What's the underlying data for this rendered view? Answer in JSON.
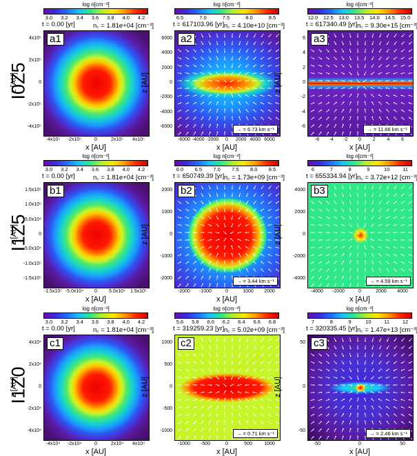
{
  "rows": [
    {
      "label": "I0Z5",
      "panels": [
        {
          "id": "a1",
          "colorbar": {
            "title": "log n[cm⁻³]",
            "ticks": [
              "3.0",
              "3.2",
              "3.4",
              "3.6",
              "3.8",
              "4.0",
              "4.2"
            ]
          },
          "time": "t = 0.00 [yr]",
          "nc": "n꜀ = 1.81e+04 [cm⁻³]",
          "xticks": [
            "-4x10⁵",
            "-2x10⁵",
            "0",
            "2x10⁵",
            "4x10⁵"
          ],
          "yticks": [
            "4x10⁵",
            "2x10⁵",
            "0",
            "-2x10⁵",
            "-4x10⁵"
          ],
          "xlabel": "x [AU]",
          "ylabel": "z [AU]",
          "velocity": ""
        },
        {
          "id": "a2",
          "colorbar": {
            "title": "log n[cm⁻³]",
            "ticks": [
              "6.5",
              "7.0",
              "7.5",
              "8.0",
              "8.5"
            ]
          },
          "time": "t = 617103.96 [yr]",
          "nc": "n꜀ = 4.10e+10 [cm⁻³]",
          "xticks": [
            "-6000",
            "-4000",
            "-2000",
            "0",
            "2000",
            "4000",
            "6000"
          ],
          "yticks": [
            "6000",
            "4000",
            "2000",
            "0",
            "-2000",
            "-4000",
            "-6000"
          ],
          "xlabel": "x [AU]",
          "ylabel": "z [AU]",
          "velocity": "→ = 6.73 km s⁻¹"
        },
        {
          "id": "a3",
          "colorbar": {
            "title": "log n[cm⁻³]",
            "ticks": [
              "12.0",
              "12.5",
              "13.0",
              "13.5",
              "14.0",
              "14.5",
              "15.0"
            ]
          },
          "time": "t = 617340.49 [yr]",
          "nc": "n꜀ = 9.30e+15 [cm⁻³]",
          "xticks": [
            "-6",
            "-4",
            "-2",
            "0",
            "2",
            "4",
            "6"
          ],
          "yticks": [
            "6",
            "4",
            "2",
            "0",
            "-2",
            "-4",
            "-6"
          ],
          "xlabel": "x [AU]",
          "ylabel": "z [AU]",
          "velocity": "→ = 11.66 km s⁻¹"
        }
      ]
    },
    {
      "label": "I1Z5",
      "panels": [
        {
          "id": "b1",
          "colorbar": {
            "title": "log n[cm⁻³]",
            "ticks": [
              "3.0",
              "3.2",
              "3.4",
              "3.6",
              "3.8",
              "4.0",
              "4.2"
            ]
          },
          "time": "t = 0.00 [yr]",
          "nc": "n꜀ = 1.81e+04 [cm⁻³]",
          "xticks": [
            "-1.5x10⁵",
            "-5.0x10⁴",
            "0",
            "5.0x10⁴",
            "1.5x10⁵"
          ],
          "yticks": [
            "1.5x10⁵",
            "1.0x10⁵",
            "5.0x10⁴",
            "0",
            "-5.0x10⁴",
            "-1.0x10⁵",
            "-1.5x10⁵"
          ],
          "xlabel": "x [AU]",
          "ylabel": "z [AU]",
          "velocity": ""
        },
        {
          "id": "b2",
          "colorbar": {
            "title": "log n[cm⁻³]",
            "ticks": [
              "6.0",
              "6.5",
              "7.0",
              "7.5",
              "8.0",
              "8.5"
            ]
          },
          "time": "t = 650749.39 [yr]",
          "nc": "n꜀ = 1.73e+09 [cm⁻³]",
          "xticks": [
            "-2000",
            "-1000",
            "0",
            "1000",
            "2000"
          ],
          "yticks": [
            "2000",
            "1000",
            "0",
            "-1000",
            "-2000"
          ],
          "xlabel": "x [AU]",
          "ylabel": "z [AU]",
          "velocity": "→ = 3.44 km s⁻¹"
        },
        {
          "id": "b3",
          "colorbar": {
            "title": "log n[cm⁻³]",
            "ticks": [
              "6",
              "7",
              "8",
              "9",
              "10",
              "11"
            ]
          },
          "time": "t = 655334.94 [yr]",
          "nc": "n꜀ = 3.72e+12 [cm⁻³]",
          "xticks": [
            "-4000",
            "-2000",
            "0",
            "2000",
            "4000"
          ],
          "yticks": [
            "4000",
            "2000",
            "0",
            "-2000",
            "-4000"
          ],
          "xlabel": "x [AU]",
          "ylabel": "z [AU]",
          "velocity": "→ = 4.59 km s⁻¹"
        }
      ]
    },
    {
      "label": "I1Z0",
      "panels": [
        {
          "id": "c1",
          "colorbar": {
            "title": "log n[cm⁻³]",
            "ticks": [
              "3.0",
              "3.2",
              "3.4",
              "3.6",
              "3.8",
              "4.0",
              "4.2"
            ]
          },
          "time": "t = 0.00 [yr]",
          "nc": "n꜀ = 1.81e+04 [cm⁻³]",
          "xticks": [
            "-4x10⁴",
            "-2x10⁴",
            "0",
            "2x10⁴",
            "4x10⁴"
          ],
          "yticks": [
            "4x10⁴",
            "2x10⁴",
            "0",
            "-2x10⁴",
            "-4x10⁴"
          ],
          "xlabel": "x [AU]",
          "ylabel": "z [AU]",
          "velocity": ""
        },
        {
          "id": "c2",
          "colorbar": {
            "title": "log n[cm⁻³]",
            "ticks": [
              "5.6",
              "5.8",
              "6.0",
              "6.2",
              "6.4",
              "6.6",
              "6.8"
            ]
          },
          "time": "t = 319259.23 [yr]",
          "nc": "n꜀ = 5.02e+09 [cm⁻³]",
          "xticks": [
            "-1000",
            "-500",
            "0",
            "500",
            "1000"
          ],
          "yticks": [
            "1000",
            "500",
            "0",
            "-500",
            "-1000"
          ],
          "xlabel": "x [AU]",
          "ylabel": "z [AU]",
          "velocity": "→ = 0.71 km s⁻¹"
        },
        {
          "id": "c3",
          "colorbar": {
            "title": "log n[cm⁻³]",
            "ticks": [
              "7",
              "8",
              "9",
              "10",
              "11",
              "12"
            ]
          },
          "time": "t = 320335.45 [yr]",
          "nc": "n꜀ = 1.47e+13 [cm⁻³]",
          "xticks": [
            "-50",
            "0",
            "50"
          ],
          "yticks": [
            "50",
            "0",
            "-50"
          ],
          "xlabel": "x [AU]",
          "ylabel": "z [AU]",
          "velocity": "→ = 2.46 km s⁻¹"
        }
      ]
    }
  ]
}
